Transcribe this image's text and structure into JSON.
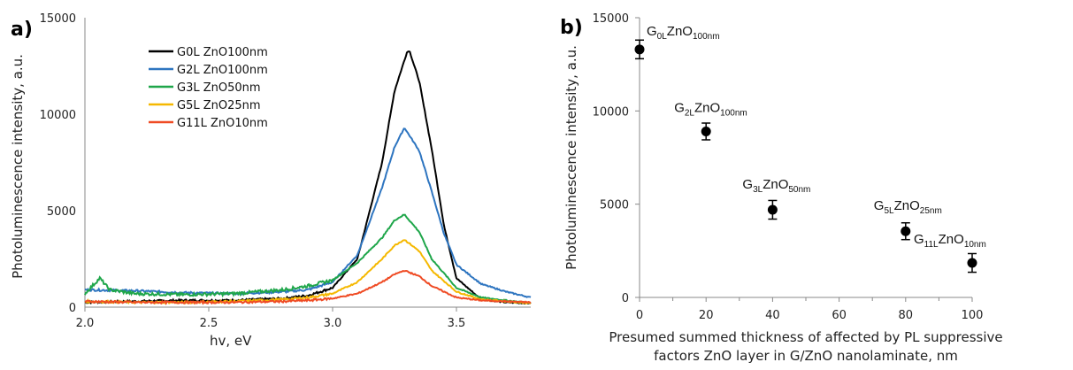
{
  "chart_data": [
    {
      "panel_label": "a)",
      "type": "line",
      "xlabel": "hv, eV",
      "ylabel": "Photoluminescence intensity, a.u.",
      "xlim": [
        2.0,
        3.8
      ],
      "ylim": [
        0,
        15000
      ],
      "xticks": [
        "2.0",
        "2.5",
        "3.0",
        "3.5"
      ],
      "yticks": [
        "0",
        "5000",
        "10000",
        "15000"
      ],
      "legend_position": "top-left",
      "series": [
        {
          "name": "G0L ZnO100nm",
          "color": "#000000",
          "baseline": 300,
          "peak_x": 3.31,
          "peak_y": 13300,
          "width_left": 0.09,
          "width_right": 0.07,
          "x": [
            2.0,
            2.2,
            2.4,
            2.6,
            2.8,
            2.9,
            3.0,
            3.1,
            3.2,
            3.25,
            3.3,
            3.31,
            3.35,
            3.4,
            3.45,
            3.5,
            3.6,
            3.7,
            3.8
          ],
          "y": [
            250,
            300,
            350,
            350,
            450,
            600,
            1000,
            2500,
            7500,
            11200,
            13200,
            13300,
            11700,
            8200,
            4200,
            1500,
            400,
            250,
            200
          ]
        },
        {
          "name": "G2L ZnO100nm",
          "color": "#2e75c0",
          "baseline": 850,
          "peak_x": 3.29,
          "peak_y": 9300,
          "width_left": 0.1,
          "width_right": 0.1,
          "x": [
            2.0,
            2.2,
            2.4,
            2.6,
            2.8,
            2.9,
            3.0,
            3.1,
            3.2,
            3.25,
            3.29,
            3.35,
            3.4,
            3.45,
            3.5,
            3.6,
            3.7,
            3.8
          ],
          "y": [
            900,
            850,
            750,
            700,
            800,
            900,
            1300,
            2700,
            6200,
            8300,
            9300,
            8100,
            6000,
            3800,
            2200,
            1200,
            800,
            500
          ]
        },
        {
          "name": "G3L ZnO50nm",
          "color": "#1fa64a",
          "baseline": 650,
          "peak_x": 3.29,
          "peak_y": 4800,
          "width_left": 0.11,
          "width_right": 0.09,
          "x": [
            2.0,
            2.06,
            2.1,
            2.2,
            2.4,
            2.6,
            2.8,
            2.9,
            3.0,
            3.1,
            3.2,
            3.25,
            3.29,
            3.35,
            3.4,
            3.5,
            3.6,
            3.7,
            3.8
          ],
          "y": [
            700,
            1500,
            900,
            700,
            650,
            700,
            900,
            1100,
            1400,
            2300,
            3600,
            4500,
            4800,
            3900,
            2500,
            1000,
            500,
            350,
            200
          ]
        },
        {
          "name": "G5L ZnO25nm",
          "color": "#f5b800",
          "baseline": 250,
          "peak_x": 3.29,
          "peak_y": 3500,
          "width_left": 0.1,
          "width_right": 0.09,
          "x": [
            2.0,
            2.2,
            2.4,
            2.6,
            2.8,
            2.9,
            3.0,
            3.1,
            3.2,
            3.25,
            3.29,
            3.35,
            3.4,
            3.5,
            3.6,
            3.7,
            3.8
          ],
          "y": [
            300,
            250,
            250,
            300,
            400,
            500,
            700,
            1300,
            2500,
            3200,
            3500,
            2900,
            1900,
            800,
            400,
            300,
            200
          ]
        },
        {
          "name": "G11L ZnO10nm",
          "color": "#ef4b24",
          "baseline": 250,
          "peak_x": 3.29,
          "peak_y": 1900,
          "width_left": 0.1,
          "width_right": 0.08,
          "x": [
            2.0,
            2.2,
            2.4,
            2.6,
            2.8,
            2.9,
            3.0,
            3.1,
            3.2,
            3.25,
            3.29,
            3.35,
            3.4,
            3.5,
            3.6,
            3.7,
            3.8
          ],
          "y": [
            300,
            250,
            250,
            250,
            300,
            350,
            450,
            700,
            1300,
            1700,
            1900,
            1600,
            1100,
            500,
            350,
            300,
            250
          ]
        }
      ]
    },
    {
      "panel_label": "b)",
      "type": "scatter",
      "xlabel": "Presumed summed thickness of affected by PL suppressive factors ZnO layer in G/ZnO nanolaminate, nm",
      "xlabel_lines": [
        "Presumed summed thickness of affected by PL suppressive",
        "factors ZnO layer in G/ZnO nanolaminate, nm"
      ],
      "ylabel": "Photoluminescence intensity, a.u.",
      "xlim": [
        0,
        100
      ],
      "ylim": [
        0,
        15000
      ],
      "xticks": [
        "0",
        "20",
        "40",
        "60",
        "80",
        "100"
      ],
      "yticks": [
        "0",
        "5000",
        "10000",
        "15000"
      ],
      "points": [
        {
          "x": 0,
          "y": 13300,
          "err": 500,
          "label": {
            "g": "G",
            "gsub": "0L",
            "z": "ZnO",
            "zsub": "100nm"
          }
        },
        {
          "x": 20,
          "y": 8900,
          "err": 450,
          "label": {
            "g": "G",
            "gsub": "2L",
            "z": "ZnO",
            "zsub": "100nm"
          }
        },
        {
          "x": 40,
          "y": 4700,
          "err": 500,
          "label": {
            "g": "G",
            "gsub": "3L",
            "z": "ZnO",
            "zsub": "50nm"
          }
        },
        {
          "x": 80,
          "y": 3550,
          "err": 450,
          "label": {
            "g": "G",
            "gsub": "5L",
            "z": "ZnO",
            "zsub": "25nm"
          }
        },
        {
          "x": 100,
          "y": 1850,
          "err": 500,
          "label": {
            "g": "G",
            "gsub": "11L",
            "z": "ZnO",
            "zsub": "10nm"
          }
        }
      ]
    }
  ]
}
